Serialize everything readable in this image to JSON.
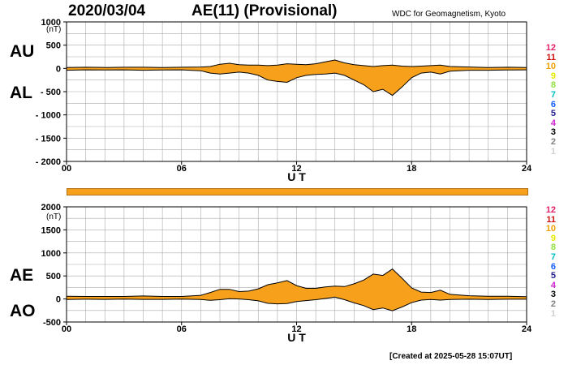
{
  "header": {
    "date": "2020/03/04",
    "title": "AE(11) (Provisional)",
    "source": "WDC for Geomagnetism, Kyoto"
  },
  "footer": {
    "created": "[Created at 2025-05-28 15:07UT]"
  },
  "station_numbers": [
    "12",
    "11",
    "10",
    "9",
    "8",
    "7",
    "6",
    "5",
    "4",
    "3",
    "2",
    "1"
  ],
  "station_colors": [
    "#e0206a",
    "#d01010",
    "#f0a000",
    "#e8e800",
    "#90e040",
    "#00c0c0",
    "#1060ff",
    "#202090",
    "#d020d0",
    "#000000",
    "#808080",
    "#d0d0d0"
  ],
  "colors": {
    "fill": "#f7a01c",
    "line": "#000000",
    "grid": "#aaaaaa"
  },
  "chart_data": [
    {
      "type": "area",
      "series": [
        {
          "name": "AU",
          "x": [
            0,
            1,
            2,
            3,
            4,
            5,
            6,
            7,
            7.5,
            8,
            8.5,
            9,
            9.5,
            10,
            10.5,
            11,
            11.5,
            12,
            12.5,
            13,
            13.5,
            14,
            14.5,
            15,
            15.5,
            16,
            16.5,
            17,
            17.5,
            18,
            18.5,
            19,
            19.5,
            20,
            21,
            22,
            23,
            24
          ],
          "values": [
            20,
            25,
            20,
            25,
            25,
            20,
            25,
            30,
            40,
            90,
            110,
            80,
            70,
            70,
            60,
            70,
            100,
            90,
            80,
            100,
            140,
            180,
            120,
            80,
            60,
            40,
            60,
            70,
            50,
            40,
            50,
            60,
            70,
            40,
            30,
            20,
            25,
            20
          ]
        },
        {
          "name": "AL",
          "x": [
            0,
            1,
            2,
            3,
            4,
            5,
            6,
            7,
            7.5,
            8,
            8.5,
            9,
            9.5,
            10,
            10.5,
            11,
            11.5,
            12,
            12.5,
            13,
            13.5,
            14,
            14.5,
            15,
            15.5,
            16,
            16.5,
            17,
            17.5,
            18,
            18.5,
            19,
            19.5,
            20,
            21,
            22,
            23,
            24
          ],
          "values": [
            -40,
            -30,
            -35,
            -30,
            -40,
            -35,
            -30,
            -50,
            -100,
            -120,
            -100,
            -80,
            -100,
            -150,
            -250,
            -280,
            -300,
            -200,
            -150,
            -130,
            -120,
            -100,
            -150,
            -250,
            -350,
            -500,
            -450,
            -580,
            -400,
            -200,
            -100,
            -80,
            -120,
            -60,
            -40,
            -40,
            -35,
            -30
          ]
        }
      ],
      "xlabel": "U T",
      "ylabel": "(nT)",
      "xlim": [
        0,
        24
      ],
      "ylim": [
        -2000,
        1000
      ],
      "xticks": [
        "00",
        "06",
        "12",
        "18",
        "24"
      ],
      "yticks": [
        "1000",
        "500",
        "0",
        "- 500",
        "- 1000",
        "- 1500",
        "- 2000"
      ],
      "series_labels": [
        "AU",
        "AL"
      ],
      "grid": true
    },
    {
      "type": "area",
      "series": [
        {
          "name": "AE",
          "x": [
            0,
            1,
            2,
            3,
            4,
            5,
            6,
            7,
            7.5,
            8,
            8.5,
            9,
            9.5,
            10,
            10.5,
            11,
            11.5,
            12,
            12.5,
            13,
            13.5,
            14,
            14.5,
            15,
            15.5,
            16,
            16.5,
            17,
            17.5,
            18,
            18.5,
            19,
            19.5,
            20,
            21,
            22,
            23,
            24
          ],
          "values": [
            60,
            55,
            55,
            55,
            65,
            55,
            55,
            80,
            140,
            210,
            210,
            160,
            170,
            220,
            310,
            350,
            400,
            290,
            230,
            230,
            260,
            280,
            270,
            330,
            410,
            540,
            510,
            650,
            450,
            240,
            150,
            140,
            190,
            100,
            70,
            60,
            60,
            50
          ]
        },
        {
          "name": "AO",
          "x": [
            0,
            1,
            2,
            3,
            4,
            5,
            6,
            7,
            7.5,
            8,
            8.5,
            9,
            9.5,
            10,
            10.5,
            11,
            11.5,
            12,
            12.5,
            13,
            13.5,
            14,
            14.5,
            15,
            15.5,
            16,
            16.5,
            17,
            17.5,
            18,
            18.5,
            19,
            19.5,
            20,
            21,
            22,
            23,
            24
          ],
          "values": [
            -10,
            -5,
            -8,
            -3,
            -8,
            -8,
            -3,
            -10,
            -30,
            -15,
            5,
            0,
            -15,
            -40,
            -95,
            -105,
            -100,
            -55,
            -35,
            -15,
            10,
            40,
            -15,
            -85,
            -145,
            -230,
            -195,
            -255,
            -175,
            -80,
            -25,
            -10,
            -25,
            -10,
            -5,
            -10,
            -5,
            -5
          ]
        }
      ],
      "xlabel": "U T",
      "ylabel": "(nT)",
      "xlim": [
        0,
        24
      ],
      "ylim": [
        -500,
        2000
      ],
      "xticks": [
        "00",
        "06",
        "12",
        "18",
        "24"
      ],
      "yticks": [
        "2000",
        "1500",
        "1000",
        "500",
        "0",
        "-500"
      ],
      "series_labels": [
        "AE",
        "AO"
      ],
      "grid": true
    }
  ]
}
